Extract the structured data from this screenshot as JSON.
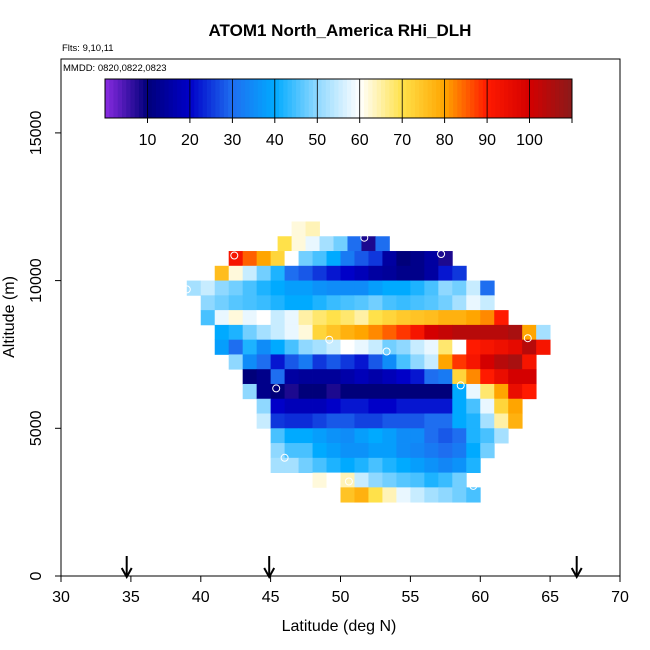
{
  "chart_data": {
    "type": "heatmap",
    "title": "ATOM1 North_America RHi_DLH",
    "annotations": [
      "Flts: 9,10,11",
      "MMDD: 0820,0822,0823"
    ],
    "xlabel": "Latitude (deg N)",
    "ylabel": "Altitude (m)",
    "xlim": [
      30,
      70
    ],
    "ylim": [
      0,
      17500
    ],
    "x_ticks": [
      30,
      35,
      40,
      45,
      50,
      55,
      60,
      65,
      70
    ],
    "y_ticks": [
      0,
      5000,
      10000,
      15000
    ],
    "x_tick_labels": [
      "30",
      "35",
      "40",
      "45",
      "50",
      "55",
      "60",
      "65",
      "70"
    ],
    "y_tick_labels": [
      "0",
      "5000",
      "10000",
      "15000"
    ],
    "colorbar": {
      "range": [
        0,
        110
      ],
      "ticks": [
        10,
        20,
        30,
        40,
        50,
        60,
        70,
        80,
        90,
        100
      ],
      "tick_labels": [
        "10",
        "20",
        "30",
        "40",
        "50",
        "60",
        "70",
        "80",
        "90",
        "100"
      ],
      "stops": [
        [
          0,
          "#8a2be2"
        ],
        [
          10,
          "#00007a"
        ],
        [
          20,
          "#0000c8"
        ],
        [
          30,
          "#1e6ef0"
        ],
        [
          40,
          "#00aaff"
        ],
        [
          50,
          "#8fd8ff"
        ],
        [
          60,
          "#ffffff"
        ],
        [
          70,
          "#ffe14a"
        ],
        [
          80,
          "#ffa500"
        ],
        [
          90,
          "#ff1a00"
        ],
        [
          100,
          "#d40000"
        ],
        [
          110,
          "#8b1a1a"
        ]
      ]
    },
    "cell_size": {
      "lat": 1.0,
      "alt": 500
    },
    "grid_rows": [
      {
        "alt": 11750,
        "lat0": 46.5,
        "values": [
          62,
          64
        ]
      },
      {
        "alt": 11250,
        "lat0": 45.5,
        "values": [
          70,
          62,
          58,
          52,
          48,
          30,
          8,
          30
        ]
      },
      {
        "alt": 10750,
        "lat0": 42.0,
        "values": [
          92,
          85,
          80,
          72,
          60,
          48,
          45,
          40,
          32,
          28,
          25,
          15,
          10,
          12,
          15,
          8
        ]
      },
      {
        "alt": 10250,
        "lat0": 41.0,
        "values": [
          76,
          62,
          55,
          48,
          42,
          30,
          28,
          25,
          22,
          20,
          18,
          15,
          14,
          12,
          12,
          15,
          22,
          25
        ]
      },
      {
        "alt": 9750,
        "lat0": 39.0,
        "values": [
          52,
          55,
          50,
          48,
          45,
          42,
          40,
          38,
          38,
          36,
          35,
          35,
          35,
          38,
          40,
          40,
          42,
          45,
          50,
          48,
          55,
          30
        ]
      },
      {
        "alt": 9250,
        "lat0": 40.0,
        "values": [
          50,
          48,
          46,
          45,
          44,
          42,
          40,
          40,
          42,
          44,
          45,
          46,
          48,
          45,
          44,
          45,
          46,
          48,
          52,
          58,
          55
        ]
      },
      {
        "alt": 8750,
        "lat0": 40.0,
        "values": [
          45,
          58,
          62,
          58,
          60,
          55,
          58,
          65,
          68,
          70,
          68,
          65,
          70,
          72,
          74,
          75,
          76,
          78,
          78,
          80,
          82,
          90
        ]
      },
      {
        "alt": 8250,
        "lat0": 41.0,
        "values": [
          40,
          42,
          48,
          52,
          55,
          58,
          62,
          72,
          75,
          78,
          80,
          82,
          85,
          88,
          92,
          100,
          102,
          104,
          104,
          104,
          104,
          106,
          80,
          52
        ]
      },
      {
        "alt": 7750,
        "lat0": 41.0,
        "values": [
          38,
          30,
          42,
          35,
          40,
          45,
          50,
          52,
          55,
          60,
          58,
          55,
          48,
          50,
          55,
          58,
          68,
          60,
          90,
          92,
          94,
          96,
          104,
          92
        ]
      },
      {
        "alt": 7250,
        "lat0": 42.0,
        "values": [
          50,
          35,
          30,
          22,
          28,
          32,
          25,
          28,
          25,
          22,
          28,
          35,
          45,
          50,
          55,
          80,
          88,
          92,
          100,
          104,
          106,
          92
        ]
      },
      {
        "alt": 6750,
        "lat0": 43.0,
        "values": [
          10,
          12,
          30,
          15,
          14,
          14,
          14,
          16,
          18,
          16,
          18,
          20,
          22,
          30,
          32,
          72,
          82,
          90,
          95,
          100,
          100
        ]
      },
      {
        "alt": 6250,
        "lat0": 43.0,
        "values": [
          50,
          12,
          10,
          8,
          10,
          10,
          8,
          10,
          10,
          10,
          10,
          10,
          10,
          10,
          10,
          40,
          58,
          68,
          80,
          95,
          90
        ]
      },
      {
        "alt": 5750,
        "lat0": 44.0,
        "values": [
          50,
          20,
          18,
          18,
          18,
          20,
          22,
          22,
          20,
          20,
          22,
          22,
          22,
          22,
          40,
          45,
          58,
          72,
          80
        ]
      },
      {
        "alt": 5250,
        "lat0": 44.0,
        "values": [
          55,
          25,
          24,
          24,
          26,
          28,
          28,
          26,
          26,
          28,
          28,
          28,
          30,
          30,
          40,
          42,
          52,
          65,
          78
        ]
      },
      {
        "alt": 4750,
        "lat0": 45.0,
        "values": [
          45,
          40,
          40,
          38,
          36,
          35,
          38,
          40,
          38,
          35,
          35,
          30,
          28,
          30,
          42,
          45,
          52
        ]
      },
      {
        "alt": 4250,
        "lat0": 45.0,
        "values": [
          50,
          45,
          45,
          40,
          38,
          36,
          36,
          38,
          38,
          35,
          34,
          32,
          30,
          32,
          40,
          48
        ]
      },
      {
        "alt": 3750,
        "lat0": 45.0,
        "values": [
          52,
          52,
          48,
          45,
          42,
          40,
          42,
          45,
          42,
          40,
          38,
          36,
          34,
          36,
          42
        ]
      },
      {
        "alt": 3250,
        "lat0": 48.0,
        "values": [
          62,
          60,
          64,
          55,
          50,
          48,
          46,
          45,
          42,
          44,
          48
        ]
      },
      {
        "alt": 2750,
        "lat0": 50.0,
        "values": [
          75,
          78,
          70,
          64,
          58,
          55,
          52,
          50,
          48,
          45
        ]
      }
    ],
    "circle_markers": [
      {
        "lat": 42.4,
        "alt": 10850
      },
      {
        "lat": 51.7,
        "alt": 11450
      },
      {
        "lat": 57.2,
        "alt": 10900
      },
      {
        "lat": 39.0,
        "alt": 9700
      },
      {
        "lat": 49.2,
        "alt": 8000
      },
      {
        "lat": 53.3,
        "alt": 7600
      },
      {
        "lat": 63.4,
        "alt": 8050
      },
      {
        "lat": 45.4,
        "alt": 6350
      },
      {
        "lat": 58.6,
        "alt": 6450
      },
      {
        "lat": 64.4,
        "alt": 6350
      },
      {
        "lat": 46.0,
        "alt": 4000
      },
      {
        "lat": 50.6,
        "alt": 3200
      },
      {
        "lat": 59.5,
        "alt": 3050
      }
    ],
    "arrow_markers": [
      34.7,
      44.9,
      66.9
    ]
  }
}
